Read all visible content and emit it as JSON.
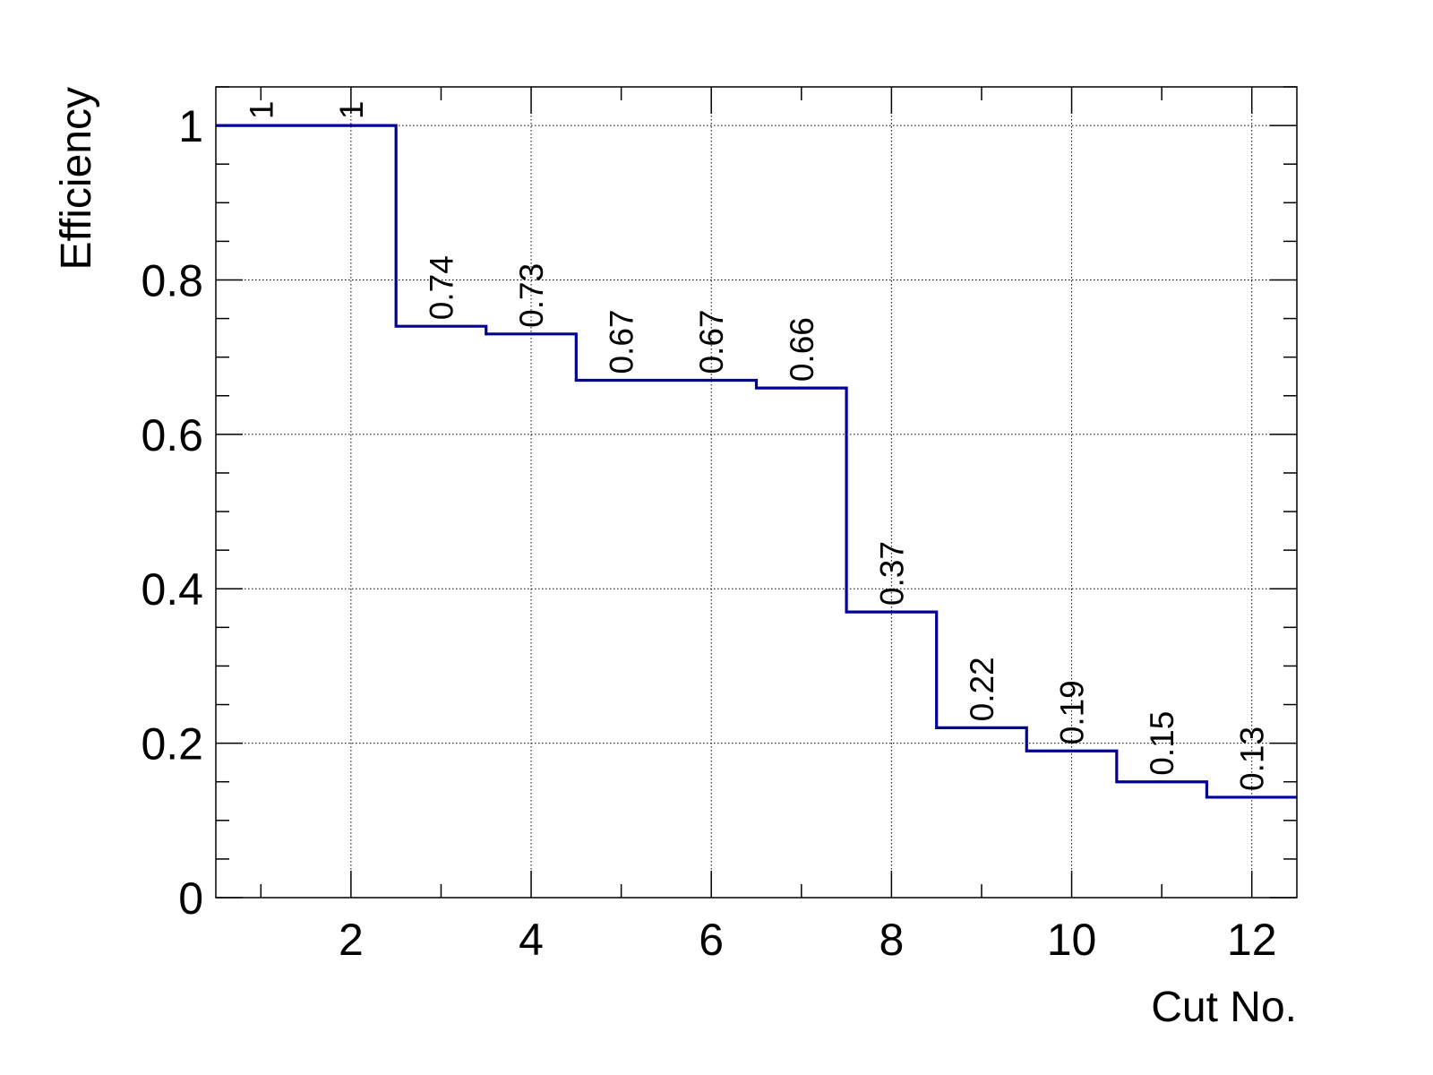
{
  "chart_data": {
    "type": "line",
    "subtype": "step-histogram",
    "xlabel": "Cut No.",
    "ylabel": "Efficiency",
    "xlim": [
      0.5,
      12.5
    ],
    "ylim": [
      0,
      1.05
    ],
    "grid": true,
    "legend": "none",
    "line_color": "#000099",
    "x_ticks": [
      2,
      4,
      6,
      8,
      10,
      12
    ],
    "x_tick_labels": [
      "2",
      "4",
      "6",
      "8",
      "10",
      "12"
    ],
    "y_ticks": [
      0,
      0.2,
      0.4,
      0.6,
      0.8,
      1
    ],
    "y_tick_labels": [
      "0",
      "0.2",
      "0.4",
      "0.6",
      "0.8",
      "1"
    ],
    "x": [
      1,
      2,
      3,
      4,
      5,
      6,
      7,
      8,
      9,
      10,
      11,
      12
    ],
    "values": [
      1,
      1,
      0.74,
      0.73,
      0.67,
      0.67,
      0.66,
      0.37,
      0.22,
      0.19,
      0.15,
      0.13
    ],
    "data_labels": [
      "1",
      "1",
      "0.74",
      "0.73",
      "0.67",
      "0.67",
      "0.66",
      "0.37",
      "0.22",
      "0.19",
      "0.15",
      "0.13"
    ]
  }
}
